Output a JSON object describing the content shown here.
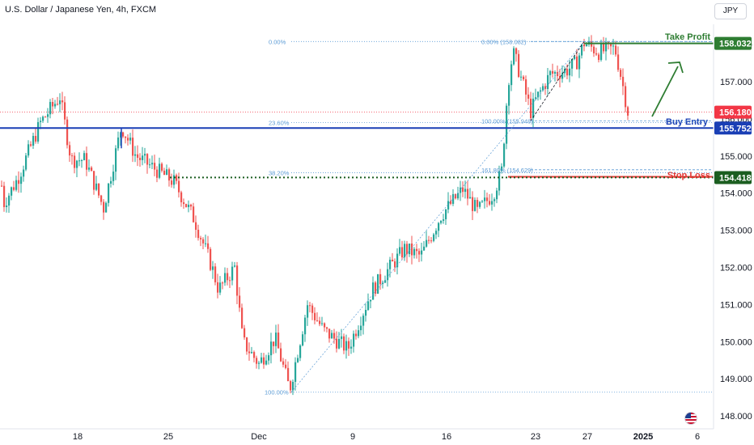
{
  "window": {
    "title": "U.S. Dollar / Japanese Yen, 4h, FXCM",
    "currency_button": "JPY",
    "flag_icon": "us-flag-icon"
  },
  "chart_data": {
    "type": "candlestick",
    "symbol": "USD/JPY",
    "timeframe": "4h",
    "ylim": [
      147.8,
      158.8
    ],
    "y_ticks": [
      148,
      149,
      150,
      151,
      152,
      153,
      154,
      155,
      156,
      157,
      158
    ],
    "y_tick_labels": [
      "148.000",
      "149.000",
      "150.000",
      "151.000",
      "152.000",
      "153.000",
      "154.000",
      "155.000",
      "156.000",
      "157.000",
      "158.000"
    ],
    "x_ticks": [
      {
        "label": "18",
        "t": 96
      },
      {
        "label": "25",
        "t": 208
      },
      {
        "label": "Dec",
        "t": 320
      },
      {
        "label": "9",
        "t": 436
      },
      {
        "label": "16",
        "t": 552
      },
      {
        "label": "23",
        "t": 662
      },
      {
        "label": "27",
        "t": 726
      },
      {
        "label": "2025",
        "t": 795
      },
      {
        "label": "6",
        "t": 862
      }
    ],
    "key_points": [
      [
        0,
        154.7
      ],
      [
        4,
        153.7
      ],
      [
        22,
        154.4
      ],
      [
        50,
        155.9
      ],
      [
        74,
        156.6
      ],
      [
        88,
        154.9
      ],
      [
        105,
        154.9
      ],
      [
        128,
        153.6
      ],
      [
        150,
        155.8
      ],
      [
        168,
        155.0
      ],
      [
        195,
        154.6
      ],
      [
        215,
        154.3
      ],
      [
        240,
        153.3
      ],
      [
        262,
        152.0
      ],
      [
        270,
        151.4
      ],
      [
        290,
        152.0
      ],
      [
        300,
        150.0
      ],
      [
        320,
        149.4
      ],
      [
        340,
        150.1
      ],
      [
        358,
        148.7
      ],
      [
        380,
        151.0
      ],
      [
        400,
        150.3
      ],
      [
        430,
        149.8
      ],
      [
        460,
        151.4
      ],
      [
        500,
        152.5
      ],
      [
        520,
        152.3
      ],
      [
        545,
        153.4
      ],
      [
        572,
        154.1
      ],
      [
        590,
        153.5
      ],
      [
        610,
        154.0
      ],
      [
        620,
        154.6
      ],
      [
        628,
        157.0
      ],
      [
        634,
        157.8
      ],
      [
        640,
        157.4
      ],
      [
        656,
        156.2
      ],
      [
        662,
        156.5
      ],
      [
        680,
        157.2
      ],
      [
        700,
        157.3
      ],
      [
        712,
        157.5
      ],
      [
        722,
        158.05
      ],
      [
        740,
        157.8
      ],
      [
        760,
        157.9
      ],
      [
        768,
        157.1
      ],
      [
        776,
        156.2
      ]
    ],
    "fibonacci": {
      "top_set": [
        {
          "label": "0.00% (158.082)",
          "price": 158.082
        },
        {
          "label": "100.00% (155.948)",
          "price": 155.948
        },
        {
          "label": "161.80% (154.629)",
          "price": 154.629
        }
      ],
      "left_set": [
        {
          "label": "0.00%",
          "price": 158.082
        },
        {
          "label": "23.60%",
          "price": 155.9
        },
        {
          "label": "38.20%",
          "price": 154.55
        },
        {
          "label": "100.00%",
          "price": 148.64
        }
      ]
    },
    "lines": {
      "take_profit": {
        "label": "Take Profit",
        "price": 158.032,
        "tag": "158.032",
        "color": "#2e7d32"
      },
      "buy_entry": {
        "label": "Buy Entry",
        "price": 155.752,
        "tag": "155.752",
        "color": "#1a3fb5"
      },
      "stop_loss": {
        "label": "Stop Loss",
        "price": 154.418,
        "tag": "154.418",
        "color": "#e53935"
      },
      "current_price": {
        "price": 156.18,
        "tag": "156.180",
        "color": "#f23645"
      },
      "support": {
        "price": 154.42,
        "color": "#1b5e20"
      }
    },
    "colors": {
      "up": "#26a69a",
      "down": "#ef5350",
      "fib": "#5b9bd5",
      "axis_text": "#131722"
    }
  }
}
